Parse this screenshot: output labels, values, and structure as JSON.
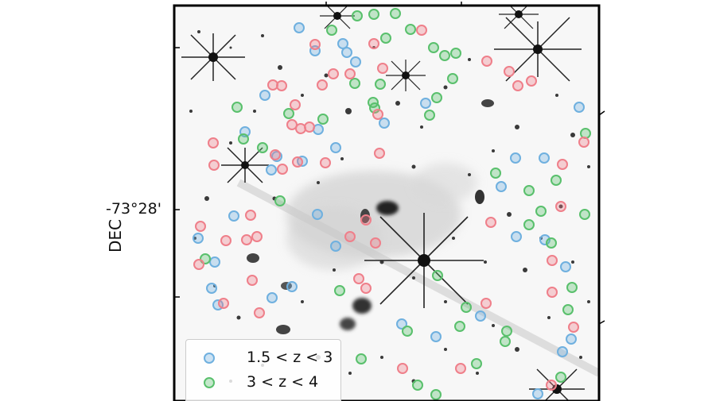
{
  "axes": {
    "y_label": "DEC",
    "y_tick": "-73°28'"
  },
  "colors": {
    "blue": "#6fb0df",
    "green": "#59c06c",
    "red": "#ef7f8a"
  },
  "legend": [
    {
      "label": "1.5 < z < 3",
      "color": "blue"
    },
    {
      "label": "3 < z < 4",
      "color": "green"
    }
  ]
}
